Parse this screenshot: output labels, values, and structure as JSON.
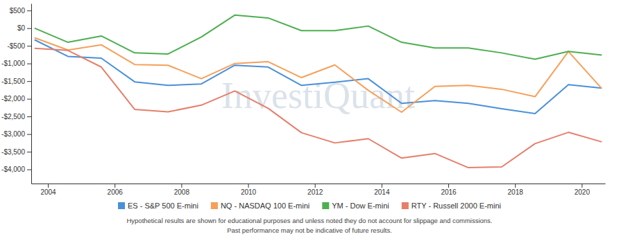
{
  "chart_data": {
    "type": "line",
    "annotations": [
      "InvestiQuant"
    ],
    "footnotes": [
      "Hypothetical results are shown for educational purposes and unless noted they do not account for slippage and commissions.",
      "Past performance may not be indicative of future results."
    ],
    "x": [
      2003.6,
      2004.6,
      2005.6,
      2006.6,
      2007.6,
      2008.6,
      2009.6,
      2010.6,
      2011.6,
      2012.6,
      2013.6,
      2014.6,
      2015.6,
      2016.6,
      2017.6,
      2018.6,
      2019.6,
      2020.6
    ],
    "xlim": [
      2003.5,
      2020.7
    ],
    "xticks": [
      2004,
      2006,
      2008,
      2010,
      2012,
      2014,
      2016,
      2018,
      2020
    ],
    "ylim": [
      -4400,
      700
    ],
    "yticks": [
      {
        "value": 500,
        "label": "$500"
      },
      {
        "value": 0,
        "label": "$0"
      },
      {
        "value": -500,
        "label": "-$500"
      },
      {
        "value": -1000,
        "label": "-$1,000"
      },
      {
        "value": -1500,
        "label": "-$1,500"
      },
      {
        "value": -2000,
        "label": "-$2,000"
      },
      {
        "value": -2500,
        "label": "-$2,500"
      },
      {
        "value": -3000,
        "label": "-$3,000"
      },
      {
        "value": -3500,
        "label": "-$3,500"
      },
      {
        "value": -4000,
        "label": "-$4,000"
      }
    ],
    "grid": false,
    "legend": "bottom",
    "series": [
      {
        "name": "ES - S&P 500 E-mini",
        "color": "#4a90d9",
        "values": [
          -330,
          -800,
          -850,
          -1520,
          -1620,
          -1580,
          -1050,
          -1100,
          -1620,
          -1530,
          -1430,
          -2130,
          -2050,
          -2130,
          -2280,
          -2420,
          -1600,
          -1700
        ]
      },
      {
        "name": "NQ - NASDAQ 100 E-mini",
        "color": "#f5a05a",
        "values": [
          -270,
          -620,
          -470,
          -1030,
          -1050,
          -1430,
          -1000,
          -950,
          -1400,
          -1040,
          -1760,
          -2380,
          -1650,
          -1620,
          -1730,
          -1940,
          -660,
          -1710
        ]
      },
      {
        "name": "YM - Dow E-mini",
        "color": "#4caf50",
        "values": [
          0,
          -400,
          -220,
          -700,
          -730,
          -250,
          370,
          290,
          -70,
          -70,
          60,
          -400,
          -560,
          -560,
          -700,
          -880,
          -660,
          -760
        ]
      },
      {
        "name": "RTY - Russell 2000 E-mini",
        "color": "#e57f6b",
        "values": [
          -570,
          -630,
          -1100,
          -2300,
          -2370,
          -2180,
          -1780,
          -2270,
          -2960,
          -3250,
          -3130,
          -3680,
          -3550,
          -3950,
          -3930,
          -3270,
          -2950,
          -3220
        ]
      }
    ]
  }
}
